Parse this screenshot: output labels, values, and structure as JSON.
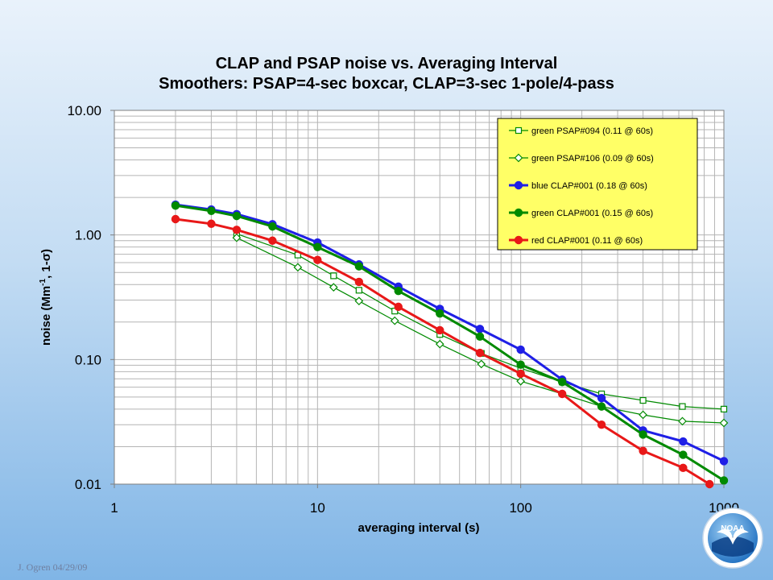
{
  "footer": {
    "credit": "J. Ogren  04/29/09"
  },
  "logo": {
    "text": "NOAA"
  },
  "colors": {
    "plot_background": "#ffffff",
    "legend_background": "#ffff66",
    "grid": "#b4b4b4",
    "green": "#008a00",
    "blue": "#1f1fe6",
    "red": "#e81818"
  },
  "chart_data": {
    "type": "line",
    "title": "CLAP and PSAP noise vs. Averaging Interval",
    "subtitle": "Smoothers: PSAP=4-sec boxcar, CLAP=3-sec 1-pole/4-pass",
    "xlabel": "averaging interval (s)",
    "ylabel_parts": {
      "pre": "noise (Mm",
      "sup": "-1",
      "post": ", 1-σ)"
    },
    "x_scale": "log",
    "y_scale": "log",
    "xlim": [
      1,
      1000
    ],
    "ylim": [
      0.01,
      10
    ],
    "x_ticks": [
      {
        "value": 1,
        "label": "1"
      },
      {
        "value": 10,
        "label": "10"
      },
      {
        "value": 100,
        "label": "100"
      },
      {
        "value": 1000,
        "label": "1000"
      }
    ],
    "y_ticks": [
      {
        "value": 0.01,
        "label": "0.01"
      },
      {
        "value": 0.1,
        "label": "0.10"
      },
      {
        "value": 1,
        "label": "1.00"
      },
      {
        "value": 10,
        "label": "10.00"
      }
    ],
    "grid": true,
    "legend_position": "top-right",
    "series": [
      {
        "name": "green PSAP#094 (0.11 @ 60s)",
        "color": "#008a00",
        "marker": "square",
        "marker_fill": "#ffffff",
        "line_width": 1.2,
        "x": [
          4,
          8,
          12,
          16,
          24,
          40,
          64,
          100,
          160,
          250,
          400,
          625,
          1000
        ],
        "y": [
          1.02,
          0.69,
          0.47,
          0.36,
          0.245,
          0.159,
          0.112,
          0.085,
          0.066,
          0.053,
          0.047,
          0.042,
          0.04
        ]
      },
      {
        "name": "green PSAP#106 (0.09 @ 60s)",
        "color": "#008a00",
        "marker": "diamond",
        "marker_fill": "#ffffff",
        "line_width": 1.2,
        "x": [
          4,
          8,
          12,
          16,
          24,
          40,
          64,
          100,
          160,
          250,
          400,
          625,
          1000
        ],
        "y": [
          0.95,
          0.55,
          0.38,
          0.295,
          0.205,
          0.133,
          0.092,
          0.067,
          0.053,
          0.042,
          0.036,
          0.032,
          0.031
        ]
      },
      {
        "name": "blue CLAP#001 (0.18 @ 60s)",
        "color": "#1f1fe6",
        "marker": "circle",
        "marker_fill": "#1f1fe6",
        "line_width": 3,
        "x": [
          2,
          3,
          4,
          6,
          10,
          16,
          25,
          40,
          63,
          100,
          160,
          250,
          400,
          630,
          1000
        ],
        "y": [
          1.75,
          1.6,
          1.47,
          1.22,
          0.87,
          0.58,
          0.385,
          0.255,
          0.176,
          0.12,
          0.069,
          0.049,
          0.027,
          0.022,
          0.0153
        ]
      },
      {
        "name": "green CLAP#001 (0.15 @ 60s)",
        "color": "#008a00",
        "marker": "circle",
        "marker_fill": "#008a00",
        "line_width": 3,
        "x": [
          2,
          3,
          4,
          6,
          10,
          16,
          25,
          40,
          63,
          100,
          160,
          250,
          400,
          630,
          1000
        ],
        "y": [
          1.72,
          1.56,
          1.42,
          1.17,
          0.8,
          0.56,
          0.355,
          0.234,
          0.153,
          0.091,
          0.066,
          0.042,
          0.025,
          0.0172,
          0.0107
        ]
      },
      {
        "name": "red CLAP#001 (0.11 @ 60s)",
        "color": "#e81818",
        "marker": "circle",
        "marker_fill": "#e81818",
        "line_width": 3,
        "x": [
          2,
          3,
          4,
          6,
          10,
          16,
          25,
          40,
          63,
          100,
          160,
          250,
          400,
          630,
          850
        ],
        "y": [
          1.34,
          1.23,
          1.1,
          0.9,
          0.63,
          0.42,
          0.265,
          0.172,
          0.113,
          0.077,
          0.053,
          0.03,
          0.0185,
          0.0135,
          0.01
        ]
      }
    ]
  }
}
